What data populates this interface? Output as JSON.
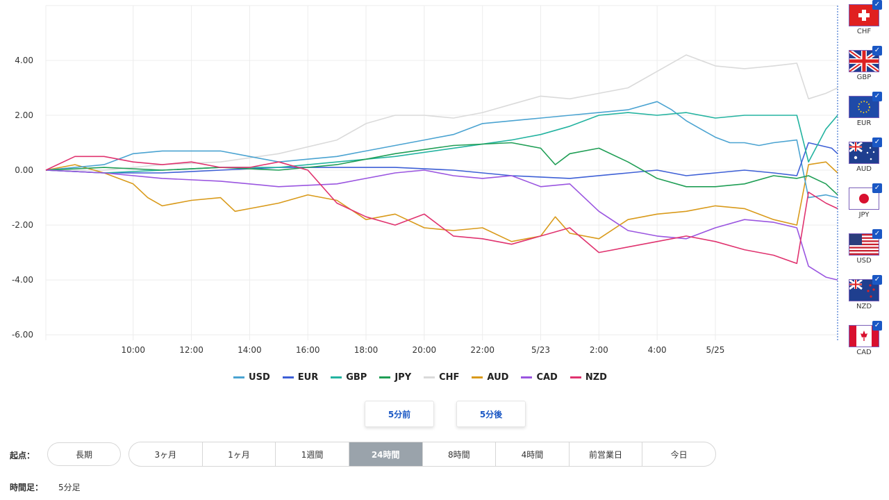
{
  "chart_data": {
    "type": "line",
    "yticks": [
      "4.00",
      "2.00",
      "0.00",
      "-2.00",
      "-4.00",
      "-6.00"
    ],
    "ylim": [
      -6.2,
      6.0
    ],
    "xticks": [
      "10:00",
      "12:00",
      "14:00",
      "16:00",
      "18:00",
      "20:00",
      "22:00",
      "5/23",
      "2:00",
      "4:00",
      "5/25"
    ],
    "grid": true,
    "legend_position": "bottom",
    "x_unit": "hours since chart start (ticks label the clock time)",
    "series": [
      {
        "name": "USD",
        "color": "#4aa3d1",
        "points": [
          [
            0,
            0
          ],
          [
            1,
            0.1
          ],
          [
            2,
            0.2
          ],
          [
            3,
            0.6
          ],
          [
            4,
            0.7
          ],
          [
            5,
            0.7
          ],
          [
            6,
            0.7
          ],
          [
            7,
            0.5
          ],
          [
            8,
            0.3
          ],
          [
            9,
            0.4
          ],
          [
            10,
            0.5
          ],
          [
            11,
            0.7
          ],
          [
            12,
            0.9
          ],
          [
            13,
            1.1
          ],
          [
            14,
            1.3
          ],
          [
            15,
            1.7
          ],
          [
            16,
            1.8
          ],
          [
            17,
            1.9
          ],
          [
            18,
            2.0
          ],
          [
            19,
            2.1
          ],
          [
            20,
            2.2
          ],
          [
            21,
            2.5
          ],
          [
            21.5,
            2.2
          ],
          [
            22,
            1.8
          ],
          [
            22.5,
            1.5
          ],
          [
            23,
            1.2
          ],
          [
            23.5,
            1.0
          ],
          [
            24,
            1.0
          ],
          [
            24.5,
            0.9
          ],
          [
            25,
            1.0
          ],
          [
            25.8,
            1.1
          ],
          [
            26.2,
            -1.0
          ],
          [
            26.8,
            -0.9
          ],
          [
            27.2,
            -1.0
          ]
        ]
      },
      {
        "name": "EUR",
        "color": "#3d5fd6",
        "points": [
          [
            0,
            0
          ],
          [
            2,
            -0.1
          ],
          [
            4,
            -0.1
          ],
          [
            6,
            0.0
          ],
          [
            8,
            0.1
          ],
          [
            10,
            0.1
          ],
          [
            12,
            0.1
          ],
          [
            14,
            0.0
          ],
          [
            16,
            -0.2
          ],
          [
            18,
            -0.3
          ],
          [
            20,
            -0.1
          ],
          [
            21,
            0.0
          ],
          [
            22,
            -0.2
          ],
          [
            23,
            -0.1
          ],
          [
            24,
            0.0
          ],
          [
            25,
            -0.1
          ],
          [
            25.8,
            -0.2
          ],
          [
            26.2,
            1.0
          ],
          [
            27,
            0.8
          ],
          [
            27.2,
            0.6
          ]
        ]
      },
      {
        "name": "GBP",
        "color": "#23b3a0",
        "points": [
          [
            0,
            0
          ],
          [
            2,
            -0.1
          ],
          [
            4,
            0.0
          ],
          [
            6,
            0.1
          ],
          [
            8,
            0.1
          ],
          [
            10,
            0.3
          ],
          [
            12,
            0.5
          ],
          [
            14,
            0.8
          ],
          [
            16,
            1.1
          ],
          [
            17,
            1.3
          ],
          [
            18,
            1.6
          ],
          [
            19,
            2.0
          ],
          [
            20,
            2.1
          ],
          [
            21,
            2.0
          ],
          [
            22,
            2.1
          ],
          [
            23,
            1.9
          ],
          [
            24,
            2.0
          ],
          [
            25,
            2.0
          ],
          [
            25.8,
            2.0
          ],
          [
            26.2,
            0.3
          ],
          [
            26.8,
            1.5
          ],
          [
            27.2,
            2.0
          ]
        ]
      },
      {
        "name": "JPY",
        "color": "#1f9e55",
        "points": [
          [
            0,
            0
          ],
          [
            2,
            0.1
          ],
          [
            4,
            0.0
          ],
          [
            6,
            0.1
          ],
          [
            8,
            0.0
          ],
          [
            10,
            0.2
          ],
          [
            12,
            0.6
          ],
          [
            14,
            0.9
          ],
          [
            16,
            1.0
          ],
          [
            17,
            0.8
          ],
          [
            17.5,
            0.2
          ],
          [
            18,
            0.6
          ],
          [
            19,
            0.8
          ],
          [
            20,
            0.3
          ],
          [
            21,
            -0.3
          ],
          [
            22,
            -0.6
          ],
          [
            23,
            -0.6
          ],
          [
            24,
            -0.5
          ],
          [
            25,
            -0.2
          ],
          [
            25.8,
            -0.3
          ],
          [
            26.2,
            -0.2
          ],
          [
            26.8,
            -0.5
          ],
          [
            27.2,
            -0.9
          ]
        ]
      },
      {
        "name": "CHF",
        "color": "#dadada",
        "points": [
          [
            0,
            0
          ],
          [
            2,
            0.0
          ],
          [
            4,
            0.2
          ],
          [
            6,
            0.3
          ],
          [
            8,
            0.6
          ],
          [
            10,
            1.1
          ],
          [
            11,
            1.7
          ],
          [
            12,
            2.0
          ],
          [
            13,
            2.0
          ],
          [
            14,
            1.9
          ],
          [
            15,
            2.1
          ],
          [
            16,
            2.4
          ],
          [
            17,
            2.7
          ],
          [
            18,
            2.6
          ],
          [
            19,
            2.8
          ],
          [
            20,
            3.0
          ],
          [
            21,
            3.6
          ],
          [
            22,
            4.2
          ],
          [
            23,
            3.8
          ],
          [
            24,
            3.7
          ],
          [
            25,
            3.8
          ],
          [
            25.8,
            3.9
          ],
          [
            26.2,
            2.6
          ],
          [
            26.8,
            2.8
          ],
          [
            27.2,
            3.0
          ]
        ]
      },
      {
        "name": "AUD",
        "color": "#d99a1a",
        "points": [
          [
            0,
            0
          ],
          [
            1,
            0.2
          ],
          [
            2,
            -0.1
          ],
          [
            3,
            -0.5
          ],
          [
            3.5,
            -1.0
          ],
          [
            4,
            -1.3
          ],
          [
            5,
            -1.1
          ],
          [
            6,
            -1.0
          ],
          [
            6.5,
            -1.5
          ],
          [
            7,
            -1.4
          ],
          [
            8,
            -1.2
          ],
          [
            9,
            -0.9
          ],
          [
            10,
            -1.1
          ],
          [
            11,
            -1.8
          ],
          [
            12,
            -1.6
          ],
          [
            13,
            -2.1
          ],
          [
            14,
            -2.2
          ],
          [
            15,
            -2.1
          ],
          [
            16,
            -2.6
          ],
          [
            17,
            -2.4
          ],
          [
            17.5,
            -1.7
          ],
          [
            18,
            -2.3
          ],
          [
            19,
            -2.5
          ],
          [
            20,
            -1.8
          ],
          [
            21,
            -1.6
          ],
          [
            22,
            -1.5
          ],
          [
            23,
            -1.3
          ],
          [
            24,
            -1.4
          ],
          [
            25,
            -1.8
          ],
          [
            25.8,
            -2.0
          ],
          [
            26.2,
            0.2
          ],
          [
            26.8,
            0.3
          ],
          [
            27.2,
            -0.1
          ]
        ]
      },
      {
        "name": "CAD",
        "color": "#9a55e0",
        "points": [
          [
            0,
            0
          ],
          [
            2,
            -0.1
          ],
          [
            4,
            -0.3
          ],
          [
            6,
            -0.4
          ],
          [
            8,
            -0.6
          ],
          [
            10,
            -0.5
          ],
          [
            11,
            -0.3
          ],
          [
            12,
            -0.1
          ],
          [
            13,
            0.0
          ],
          [
            14,
            -0.2
          ],
          [
            15,
            -0.3
          ],
          [
            16,
            -0.2
          ],
          [
            17,
            -0.6
          ],
          [
            18,
            -0.5
          ],
          [
            19,
            -1.5
          ],
          [
            20,
            -2.2
          ],
          [
            21,
            -2.4
          ],
          [
            22,
            -2.5
          ],
          [
            23,
            -2.1
          ],
          [
            24,
            -1.8
          ],
          [
            25,
            -1.9
          ],
          [
            25.8,
            -2.1
          ],
          [
            26.2,
            -3.5
          ],
          [
            26.8,
            -3.9
          ],
          [
            27.2,
            -4.0
          ]
        ]
      },
      {
        "name": "NZD",
        "color": "#e0336f",
        "points": [
          [
            0,
            0
          ],
          [
            1,
            0.5
          ],
          [
            2,
            0.5
          ],
          [
            3,
            0.3
          ],
          [
            4,
            0.2
          ],
          [
            5,
            0.3
          ],
          [
            6,
            0.1
          ],
          [
            7,
            0.1
          ],
          [
            8,
            0.3
          ],
          [
            9,
            0.0
          ],
          [
            10,
            -1.2
          ],
          [
            11,
            -1.7
          ],
          [
            12,
            -2.0
          ],
          [
            13,
            -1.6
          ],
          [
            14,
            -2.4
          ],
          [
            15,
            -2.5
          ],
          [
            16,
            -2.7
          ],
          [
            17,
            -2.4
          ],
          [
            18,
            -2.1
          ],
          [
            19,
            -3.0
          ],
          [
            20,
            -2.8
          ],
          [
            21,
            -2.6
          ],
          [
            22,
            -2.4
          ],
          [
            23,
            -2.6
          ],
          [
            24,
            -2.9
          ],
          [
            25,
            -3.1
          ],
          [
            25.8,
            -3.4
          ],
          [
            26.2,
            -0.8
          ],
          [
            26.8,
            -1.2
          ],
          [
            27.2,
            -1.4
          ]
        ]
      }
    ]
  },
  "flags": [
    {
      "code": "CHF",
      "icon": "swiss-flag-icon"
    },
    {
      "code": "GBP",
      "icon": "uk-flag-icon"
    },
    {
      "code": "EUR",
      "icon": "eu-flag-icon"
    },
    {
      "code": "AUD",
      "icon": "australia-flag-icon"
    },
    {
      "code": "JPY",
      "icon": "japan-flag-icon"
    },
    {
      "code": "USD",
      "icon": "us-flag-icon"
    },
    {
      "code": "NZD",
      "icon": "new-zealand-flag-icon"
    },
    {
      "code": "CAD",
      "icon": "canada-flag-icon"
    }
  ],
  "nav": {
    "prev_label": "5分前",
    "next_label": "5分後"
  },
  "start_point": {
    "label": "起点：",
    "long_term_label": "長期",
    "segments": [
      "3ヶ月",
      "1ヶ月",
      "1週間",
      "24時間",
      "8時間",
      "4時間",
      "前営業日",
      "今日"
    ],
    "active_index": 3
  },
  "timeframe": {
    "label": "時間足：",
    "value": "5分足"
  }
}
